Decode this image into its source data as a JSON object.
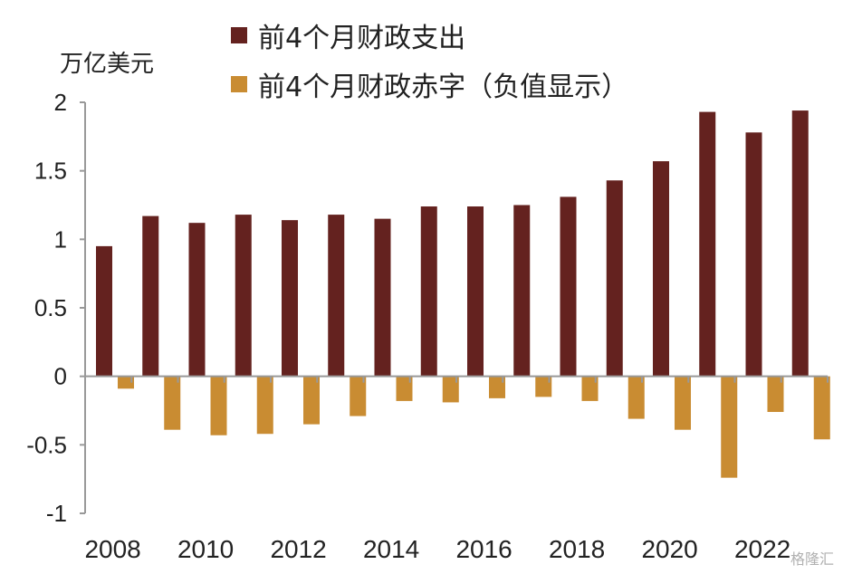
{
  "chart_data": {
    "type": "bar",
    "unit_label": "万亿美元",
    "ylim": [
      -1,
      2
    ],
    "y_ticks": [
      "2",
      "1.5",
      "1",
      "0.5",
      "0",
      "-0.5",
      "-1"
    ],
    "y_tick_values": [
      2,
      1.5,
      1,
      0.5,
      0,
      -0.5,
      -1
    ],
    "categories": [
      "2008",
      "2009",
      "2010",
      "2011",
      "2012",
      "2013",
      "2014",
      "2015",
      "2016",
      "2017",
      "2018",
      "2019",
      "2020",
      "2021",
      "2022",
      "2023"
    ],
    "x_tick_labels": [
      "2008",
      "2010",
      "2012",
      "2014",
      "2016",
      "2018",
      "2020",
      "2022"
    ],
    "legend_position": "top",
    "series": [
      {
        "name": "前4个月财政支出",
        "color": "#64221f",
        "values": [
          0.95,
          1.17,
          1.12,
          1.18,
          1.14,
          1.18,
          1.15,
          1.24,
          1.24,
          1.25,
          1.31,
          1.43,
          1.57,
          1.93,
          1.78,
          1.94
        ]
      },
      {
        "name": "前4个月财政赤字（负值显示）",
        "color": "#c98c32",
        "values": [
          -0.09,
          -0.39,
          -0.43,
          -0.42,
          -0.35,
          -0.29,
          -0.18,
          -0.19,
          -0.16,
          -0.15,
          -0.18,
          -0.31,
          -0.39,
          -0.74,
          -0.26,
          -0.46
        ]
      }
    ]
  },
  "watermark": "格隆汇"
}
